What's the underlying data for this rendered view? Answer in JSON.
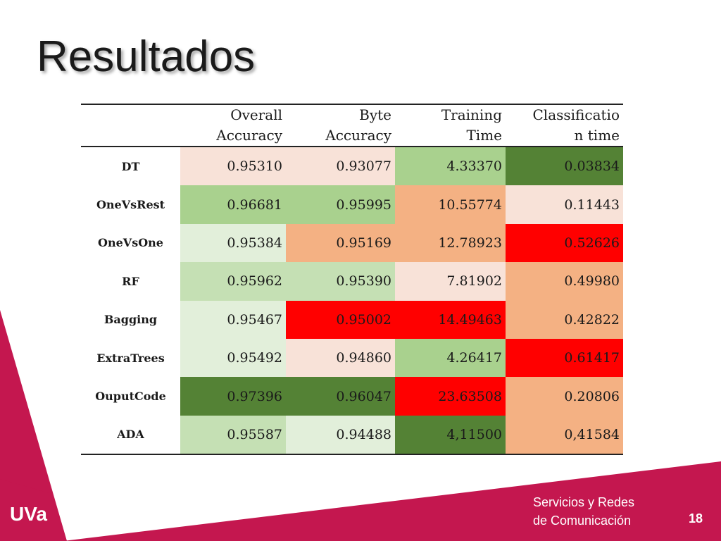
{
  "slide": {
    "title": "Resultados",
    "footer_line1": "Servicios y Redes",
    "footer_line2": "de Comunicación",
    "page_number": "18",
    "logo_text": "UVa",
    "brand_color": "#c4174f"
  },
  "table": {
    "headers": [
      [
        "",
        ""
      ],
      [
        "Overall",
        "Accuracy"
      ],
      [
        "Byte",
        "Accuracy"
      ],
      [
        "Training",
        "Time"
      ],
      [
        "Classificatio",
        "n time"
      ]
    ],
    "rows": [
      {
        "name": "DT",
        "cells": [
          "0.95310",
          "0.93077",
          "4.33370",
          "0.03834"
        ],
        "colors": [
          "#f8e2d8",
          "#f8e2d8",
          "#a9d18e",
          "#548235"
        ]
      },
      {
        "name": "OneVsRest",
        "cells": [
          "0.96681",
          "0.95995",
          "10.55774",
          "0.11443"
        ],
        "colors": [
          "#a9d18e",
          "#a9d18e",
          "#f4b183",
          "#f8e2d8"
        ]
      },
      {
        "name": "OneVsOne",
        "cells": [
          "0.95384",
          "0.95169",
          "12.78923",
          "0.52626"
        ],
        "colors": [
          "#e2efda",
          "#f4b183",
          "#f4b183",
          "#ff0000"
        ]
      },
      {
        "name": "RF",
        "cells": [
          "0.95962",
          "0.95390",
          "7.81902",
          "0.49980"
        ],
        "colors": [
          "#c5e0b4",
          "#c5e0b4",
          "#f8e2d8",
          "#f4b183"
        ]
      },
      {
        "name": "Bagging",
        "cells": [
          "0.95467",
          "0.95002",
          "14.49463",
          "0.42822"
        ],
        "colors": [
          "#e2efda",
          "#ff0000",
          "#ff0000",
          "#f4b183"
        ]
      },
      {
        "name": "ExtraTrees",
        "cells": [
          "0.95492",
          "0.94860",
          "4.26417",
          "0.61417"
        ],
        "colors": [
          "#e2efda",
          "#f8e2d8",
          "#a9d18e",
          "#ff0000"
        ]
      },
      {
        "name": "OuputCode",
        "cells": [
          "0.97396",
          "0.96047",
          "23.63508",
          "0.20806"
        ],
        "colors": [
          "#548235",
          "#548235",
          "#ff0000",
          "#f4b183"
        ]
      },
      {
        "name": "ADA",
        "cells": [
          "0.95587",
          "0.94488",
          "4,11500",
          "0,41584"
        ],
        "colors": [
          "#c5e0b4",
          "#e2efda",
          "#548235",
          "#f4b183"
        ]
      }
    ]
  }
}
